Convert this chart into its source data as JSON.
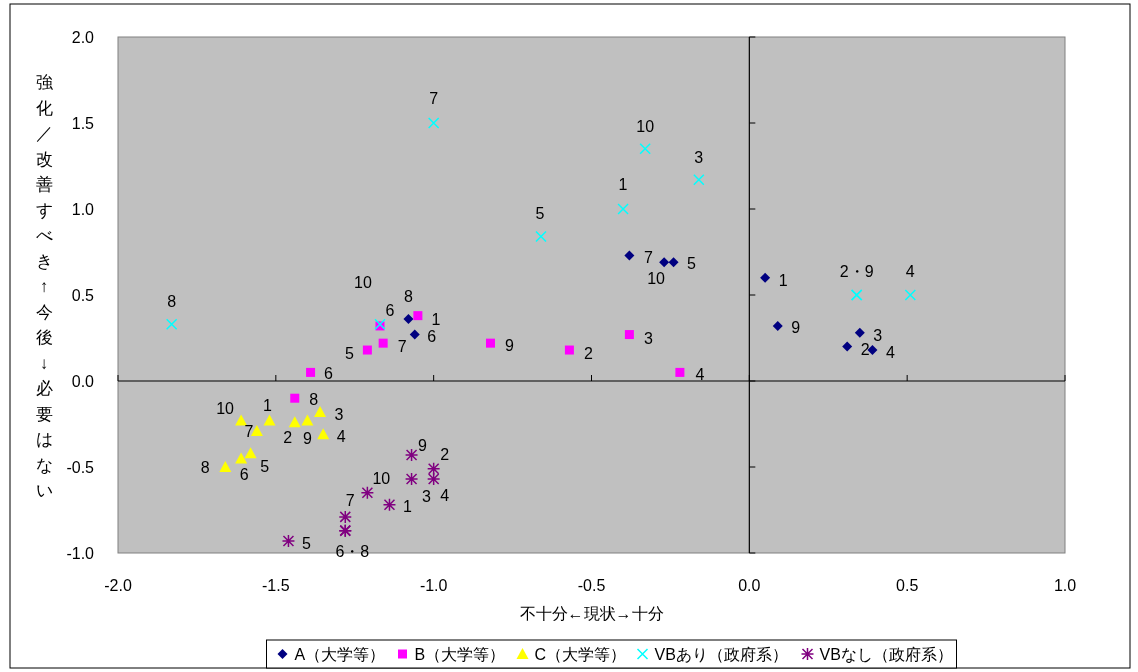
{
  "chart_data": {
    "type": "scatter",
    "xlabel": "不十分←現状→十分",
    "ylabel": "強化／改善すべき↑今後↓必要はない",
    "xlim": [
      -2,
      1
    ],
    "ylim": [
      -1,
      2
    ],
    "xticks": [
      {
        "value": -2,
        "label": "-2.0"
      },
      {
        "value": -1.5,
        "label": "-1.5"
      },
      {
        "value": -1,
        "label": "-1.0"
      },
      {
        "value": -0.5,
        "label": "-0.5"
      },
      {
        "value": 0,
        "label": "0.0"
      },
      {
        "value": 0.5,
        "label": "0.5"
      },
      {
        "value": 1,
        "label": "1.0"
      }
    ],
    "yticks": [
      {
        "value": -1,
        "label": "-1.0"
      },
      {
        "value": -0.5,
        "label": "-0.5"
      },
      {
        "value": 0,
        "label": "0.0"
      },
      {
        "value": 0.5,
        "label": "0.5"
      },
      {
        "value": 1,
        "label": "1.0"
      },
      {
        "value": 1.5,
        "label": "1.5"
      },
      {
        "value": 2,
        "label": "2.0"
      }
    ],
    "legend": "bottom",
    "series": [
      {
        "name": "A（大学等）",
        "color": "#000080",
        "marker": "diamond",
        "x": [
          0.05,
          0.31,
          0.35,
          0.39,
          -0.24,
          -1.06,
          -0.38,
          -1.08,
          0.09,
          -0.27
        ],
        "values": [
          0.6,
          0.2,
          0.28,
          0.18,
          0.69,
          0.27,
          0.73,
          0.36,
          0.32,
          0.69
        ]
      },
      {
        "name": "B（大学等）",
        "color": "#ff00ff",
        "marker": "square",
        "x": [
          -1.05,
          -0.57,
          -0.38,
          -0.22,
          -1.21,
          -1.39,
          -1.16,
          -1.44,
          -0.82,
          -1.17
        ],
        "values": [
          0.38,
          0.18,
          0.27,
          0.05,
          0.18,
          0.05,
          0.22,
          -0.1,
          0.22,
          0.32
        ]
      },
      {
        "name": "C（大学等）",
        "color": "#ffff00",
        "marker": "triangle",
        "x": [
          -1.52,
          -1.44,
          -1.36,
          -1.35,
          -1.58,
          -1.61,
          -1.56,
          -1.66,
          -1.4,
          -1.61
        ],
        "values": [
          -0.23,
          -0.24,
          -0.18,
          -0.31,
          -0.42,
          -0.45,
          -0.29,
          -0.5,
          -0.23,
          -0.23
        ]
      },
      {
        "name": "VBあり（政府系）",
        "color": "#00ffff",
        "marker": "cross",
        "x": [
          -0.4,
          0.34,
          -0.16,
          0.51,
          -0.66,
          -1.17,
          -1.0,
          -1.83,
          0.34,
          -0.33
        ],
        "values": [
          1.0,
          0.5,
          1.17,
          0.5,
          0.84,
          0.33,
          1.5,
          0.33,
          0.5,
          1.35
        ]
      },
      {
        "name": "VBなし（政府系）",
        "color": "#800080",
        "x": [
          -1.14,
          -1.0,
          -1.07,
          -1.0,
          -1.46,
          -1.28,
          -1.28,
          -1.28,
          -1.07,
          -1.21
        ],
        "values": [
          -0.72,
          -0.51,
          -0.57,
          -0.57,
          -0.93,
          -0.87,
          -0.79,
          -0.87,
          -0.43,
          -0.65
        ]
      }
    ],
    "annotations": [
      {
        "text": "1",
        "x": 0.05,
        "y": 0.6
      },
      {
        "text": "2",
        "x": 0.31,
        "y": 0.2
      },
      {
        "text": "3",
        "x": 0.35,
        "y": 0.28
      },
      {
        "text": "4",
        "x": 0.39,
        "y": 0.18
      },
      {
        "text": "5",
        "x": -0.24,
        "y": 0.69
      },
      {
        "text": "6",
        "x": -1.06,
        "y": 0.27
      },
      {
        "text": "7",
        "x": -0.38,
        "y": 0.73
      },
      {
        "text": "8",
        "x": -1.08,
        "y": 0.36
      },
      {
        "text": "9",
        "x": 0.09,
        "y": 0.32
      },
      {
        "text": "10",
        "x": -0.27,
        "y": 0.69
      },
      {
        "text": "1",
        "x": -1.05,
        "y": 0.38
      },
      {
        "text": "2",
        "x": -0.57,
        "y": 0.18
      },
      {
        "text": "3",
        "x": -0.38,
        "y": 0.27
      },
      {
        "text": "4",
        "x": -0.22,
        "y": 0.05
      },
      {
        "text": "5",
        "x": -1.21,
        "y": 0.18
      },
      {
        "text": "6",
        "x": -1.39,
        "y": 0.05
      },
      {
        "text": "7",
        "x": -1.16,
        "y": 0.22
      },
      {
        "text": "8",
        "x": -1.44,
        "y": -0.1
      },
      {
        "text": "9",
        "x": -0.82,
        "y": 0.22
      },
      {
        "text": "10",
        "x": -1.17,
        "y": 0.32
      },
      {
        "text": "1",
        "x": -1.52,
        "y": -0.23
      },
      {
        "text": "2",
        "x": -1.44,
        "y": -0.24
      },
      {
        "text": "3",
        "x": -1.36,
        "y": -0.18
      },
      {
        "text": "4",
        "x": -1.35,
        "y": -0.31
      },
      {
        "text": "5",
        "x": -1.58,
        "y": -0.42
      },
      {
        "text": "6",
        "x": -1.61,
        "y": -0.45
      },
      {
        "text": "7",
        "x": -1.56,
        "y": -0.29
      },
      {
        "text": "8",
        "x": -1.66,
        "y": -0.5
      },
      {
        "text": "9",
        "x": -1.4,
        "y": -0.23
      },
      {
        "text": "10",
        "x": -1.61,
        "y": -0.23
      },
      {
        "text": "1",
        "x": -0.4,
        "y": 1.0
      },
      {
        "text": "2・9",
        "x": 0.34,
        "y": 0.5
      },
      {
        "text": "3",
        "x": -0.16,
        "y": 1.17
      },
      {
        "text": "4",
        "x": 0.51,
        "y": 0.5
      },
      {
        "text": "5",
        "x": -0.66,
        "y": 0.84
      },
      {
        "text": "6",
        "x": -1.17,
        "y": 0.33
      },
      {
        "text": "7",
        "x": -1.0,
        "y": 1.5
      },
      {
        "text": "8",
        "x": -1.83,
        "y": 0.33
      },
      {
        "text": "10",
        "x": -0.33,
        "y": 1.35
      },
      {
        "text": "1",
        "x": -1.14,
        "y": -0.72
      },
      {
        "text": "2",
        "x": -1.0,
        "y": -0.51
      },
      {
        "text": "3",
        "x": -1.07,
        "y": -0.57
      },
      {
        "text": "4",
        "x": -1.0,
        "y": -0.57
      },
      {
        "text": "5",
        "x": -1.46,
        "y": -0.93
      },
      {
        "text": "6・8",
        "x": -1.28,
        "y": -0.87
      },
      {
        "text": "7",
        "x": -1.28,
        "y": -0.79
      },
      {
        "text": "9",
        "x": -1.07,
        "y": -0.43
      },
      {
        "text": "10",
        "x": -1.21,
        "y": -0.65
      }
    ]
  }
}
